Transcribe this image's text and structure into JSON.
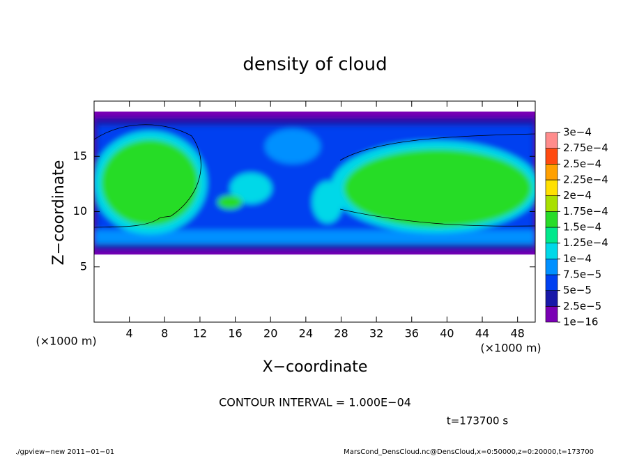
{
  "chart_data": {
    "type": "contour",
    "title": "density of cloud",
    "xlabel": "X−coordinate",
    "ylabel": "Z−coordinate",
    "xunit": "(×1000 m)",
    "xlim": [
      0,
      50
    ],
    "ylim": [
      0,
      20
    ],
    "xticks": [
      4,
      8,
      12,
      16,
      20,
      24,
      28,
      32,
      36,
      40,
      44,
      48
    ],
    "yticks": [
      5,
      10,
      15
    ],
    "contour_interval": "CONTOUR INTERVAL = 1.000E−04",
    "time": "t=173700 s",
    "colorbar": {
      "levels": [
        {
          "value": 1e-16,
          "label": "1e−16"
        },
        {
          "value": 2.5e-05,
          "label": "2.5e−5"
        },
        {
          "value": 5e-05,
          "label": "5e−5"
        },
        {
          "value": 7.5e-05,
          "label": "7.5e−5"
        },
        {
          "value": 0.0001,
          "label": "1e−4"
        },
        {
          "value": 0.000125,
          "label": "1.25e−4"
        },
        {
          "value": 0.00015,
          "label": "1.5e−4"
        },
        {
          "value": 0.000175,
          "label": "1.75e−4"
        },
        {
          "value": 0.0002,
          "label": "2e−4"
        },
        {
          "value": 0.000225,
          "label": "2.25e−4"
        },
        {
          "value": 0.00025,
          "label": "2.5e−4"
        },
        {
          "value": 0.000275,
          "label": "2.75e−4"
        },
        {
          "value": 0.0003,
          "label": "3e−4"
        }
      ],
      "colors": [
        "#7a00b4",
        "#1818a8",
        "#0040f0",
        "#0090ff",
        "#00d8e8",
        "#00e88c",
        "#28dc28",
        "#a8e000",
        "#ffe000",
        "#ffa000",
        "#ff4a10",
        "#ff8c8c"
      ]
    },
    "footer_left": "./gpview−new   2011−01−01",
    "footer_right": "MarsCond_DensCloud.nc@DensCloud,x=0:50000,z=0:20000,t=173700"
  }
}
